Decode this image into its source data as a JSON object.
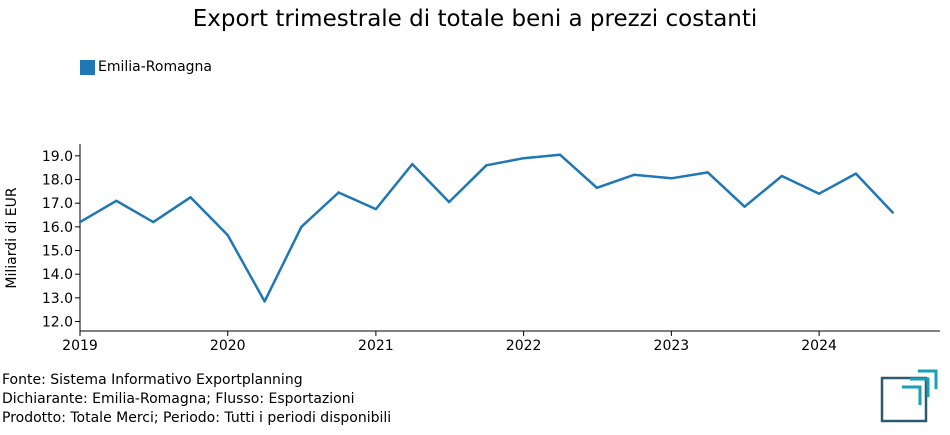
{
  "chart_data": {
    "type": "line",
    "title": "Export trimestrale di totale beni a prezzi costanti",
    "ylabel": "Miliardi di EUR",
    "xlabel": "",
    "ylim": [
      11.6,
      19.5
    ],
    "xlim": [
      "2019-01-01",
      "2024-10-01"
    ],
    "grid": false,
    "legend_position": "top-left",
    "y_ticks": [
      "12.0",
      "13.0",
      "14.0",
      "15.0",
      "16.0",
      "17.0",
      "18.0",
      "19.0"
    ],
    "x_ticks": [
      "2019",
      "2020",
      "2021",
      "2022",
      "2023",
      "2024"
    ],
    "x": [
      "2019-Q1",
      "2019-Q2",
      "2019-Q3",
      "2019-Q4",
      "2020-Q1",
      "2020-Q2",
      "2020-Q3",
      "2020-Q4",
      "2021-Q1",
      "2021-Q2",
      "2021-Q3",
      "2021-Q4",
      "2022-Q1",
      "2022-Q2",
      "2022-Q3",
      "2022-Q4",
      "2023-Q1",
      "2023-Q2",
      "2023-Q3",
      "2023-Q4",
      "2024-Q1",
      "2024-Q2",
      "2024-Q3"
    ],
    "series": [
      {
        "name": "Emilia-Romagna",
        "color": "#1f77b4",
        "values": [
          16.2,
          17.1,
          16.2,
          17.25,
          15.65,
          12.85,
          16.0,
          17.45,
          16.75,
          18.65,
          17.05,
          18.6,
          18.9,
          19.05,
          17.65,
          18.2,
          18.05,
          18.3,
          16.85,
          18.15,
          17.4,
          18.25,
          16.6
        ]
      }
    ]
  },
  "footer": {
    "line1": "Fonte: Sistema Informativo Exportplanning",
    "line2": "Dichiarante: Emilia-Romagna; Flusso: Esportazioni",
    "line3": "Prodotto: Totale Merci; Periodo: Tutti i periodi disponibili"
  },
  "logo": {
    "color_dark": "#2b5a6e",
    "color_accent": "#1aa0b3",
    "icon": "exportplanning-logo-icon"
  }
}
